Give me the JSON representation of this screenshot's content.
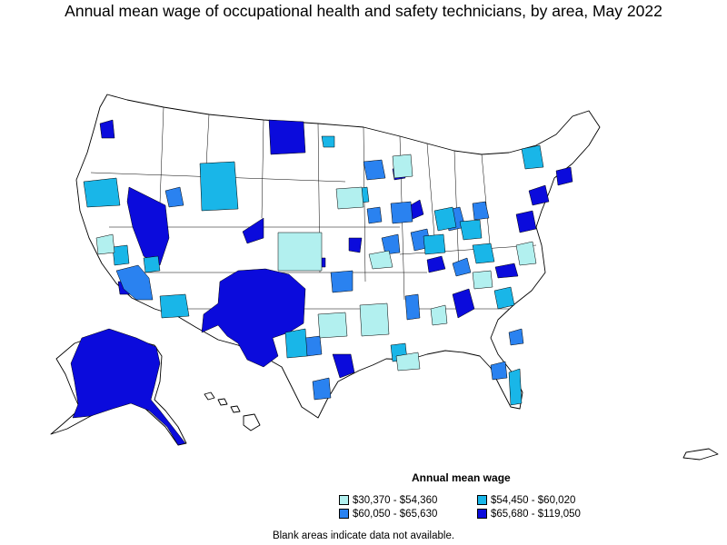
{
  "title": "Annual mean wage of occupational health and safety technicians, by area, May 2022",
  "legend": {
    "title": "Annual mean wage",
    "items": [
      {
        "label": "$30,370 - $54,360",
        "color": "#b2f0ef"
      },
      {
        "label": "$54,450 - $60,020",
        "color": "#19b6e8"
      },
      {
        "label": "$60,050 - $65,630",
        "color": "#2a82f0"
      },
      {
        "label": "$65,680 - $119,050",
        "color": "#0b0bdc"
      }
    ]
  },
  "footnote": "Blank areas indicate data not available."
}
